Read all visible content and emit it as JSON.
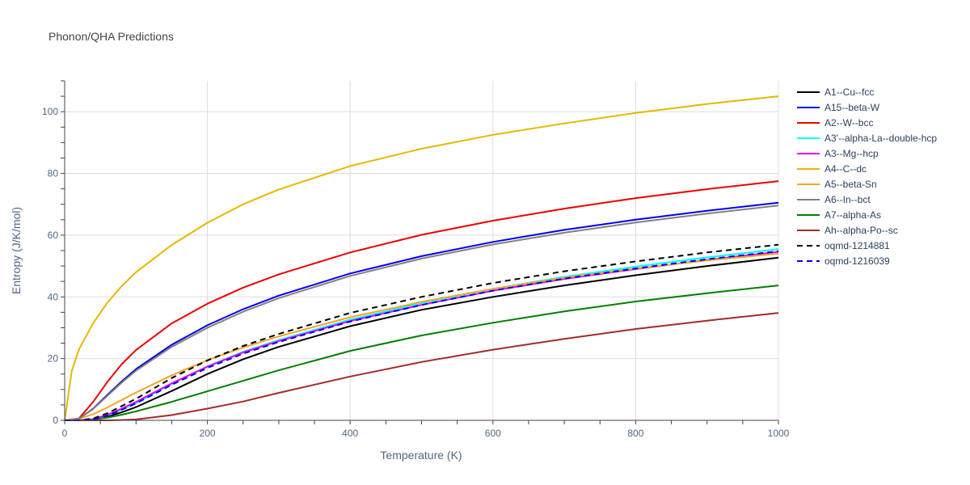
{
  "chart_data": {
    "type": "line",
    "title": "Phonon/QHA Predictions",
    "xlabel": "Temperature (K)",
    "ylabel": "Entropy (J/K/mol)",
    "xlim": [
      0,
      1000
    ],
    "ylim": [
      0,
      110
    ],
    "xticks": [
      0,
      200,
      400,
      600,
      800,
      1000
    ],
    "yticks": [
      0,
      20,
      40,
      60,
      80,
      100
    ],
    "grid": true,
    "legend_position": "right",
    "series": [
      {
        "name": "A1--Cu--fcc",
        "color": "#000000",
        "dash": "solid",
        "x": [
          0,
          20,
          40,
          60,
          80,
          100,
          150,
          200,
          250,
          300,
          400,
          500,
          600,
          700,
          800,
          900,
          1000
        ],
        "y": [
          0,
          0,
          0.3,
          1.2,
          2.6,
          4.3,
          9.5,
          15,
          19.8,
          23.8,
          30.5,
          35.8,
          40,
          43.7,
          47,
          50,
          52.7
        ]
      },
      {
        "name": "A15--beta-W",
        "color": "#0000ee",
        "dash": "solid",
        "x": [
          0,
          20,
          40,
          60,
          80,
          100,
          150,
          200,
          250,
          300,
          400,
          500,
          600,
          700,
          800,
          900,
          1000
        ],
        "y": [
          0,
          0.5,
          3.8,
          8.3,
          12.6,
          16.6,
          24.5,
          30.8,
          36,
          40.4,
          47.6,
          53.2,
          57.8,
          61.7,
          65,
          67.9,
          70.5
        ]
      },
      {
        "name": "A2--W--bcc",
        "color": "#ee0000",
        "dash": "solid",
        "x": [
          0,
          20,
          40,
          60,
          80,
          100,
          150,
          200,
          250,
          300,
          400,
          500,
          600,
          700,
          800,
          900,
          1000
        ],
        "y": [
          0,
          0.6,
          6,
          12.5,
          18.2,
          22.8,
          31.4,
          37.8,
          43,
          47.3,
          54.4,
          60.1,
          64.7,
          68.6,
          72,
          74.9,
          77.5
        ]
      },
      {
        "name": "A3'--alpha-La--double-hcp",
        "color": "#00ffff",
        "dash": "solid",
        "x": [
          0,
          20,
          40,
          60,
          80,
          100,
          150,
          200,
          250,
          300,
          400,
          500,
          600,
          700,
          800,
          900,
          1000
        ],
        "y": [
          0,
          0,
          0.3,
          1.6,
          3.5,
          5.6,
          11.8,
          17.5,
          22.2,
          26,
          32.6,
          38,
          42.6,
          46.5,
          49.8,
          52.8,
          55.5
        ]
      },
      {
        "name": "A3--Mg--hcp",
        "color": "#ee00ee",
        "dash": "solid",
        "x": [
          0,
          20,
          40,
          60,
          80,
          100,
          150,
          200,
          250,
          300,
          400,
          500,
          600,
          700,
          800,
          900,
          1000
        ],
        "y": [
          0,
          0,
          0.4,
          1.8,
          3.8,
          6,
          12,
          17.4,
          22,
          25.7,
          32.2,
          37.4,
          42,
          45.8,
          49,
          52,
          54.6
        ]
      },
      {
        "name": "A4--C--dc",
        "color": "#e6b800",
        "dash": "solid",
        "x": [
          0,
          5,
          10,
          20,
          40,
          60,
          80,
          100,
          150,
          200,
          250,
          300,
          400,
          500,
          600,
          700,
          800,
          900,
          1000
        ],
        "y": [
          0,
          8,
          16,
          23,
          31.5,
          38.2,
          43.5,
          48,
          56.8,
          64,
          70,
          74.8,
          82.4,
          88,
          92.5,
          96.2,
          99.6,
          102.5,
          105
        ]
      },
      {
        "name": "A5--beta-Sn",
        "color": "#f5a623",
        "dash": "solid",
        "x": [
          0,
          20,
          40,
          60,
          80,
          100,
          150,
          200,
          250,
          300,
          400,
          500,
          600,
          700,
          800,
          900,
          1000
        ],
        "y": [
          0,
          0.5,
          2,
          4.2,
          6.6,
          9,
          14.6,
          19.5,
          23.6,
          27.2,
          33.4,
          38.4,
          42.6,
          46.2,
          49.2,
          51.8,
          54
        ]
      },
      {
        "name": "A6--In--bct",
        "color": "#808080",
        "dash": "solid",
        "x": [
          0,
          20,
          40,
          60,
          80,
          100,
          150,
          200,
          250,
          300,
          400,
          500,
          600,
          700,
          800,
          900,
          1000
        ],
        "y": [
          0,
          0.5,
          3.7,
          8,
          12.2,
          16.1,
          23.8,
          30,
          35.2,
          39.6,
          46.8,
          52.4,
          57,
          60.8,
          64.1,
          67,
          69.6
        ]
      },
      {
        "name": "A7--alpha-As",
        "color": "#008000",
        "dash": "solid",
        "x": [
          0,
          20,
          40,
          60,
          80,
          100,
          150,
          200,
          250,
          300,
          400,
          500,
          600,
          700,
          800,
          900,
          1000
        ],
        "y": [
          0,
          0,
          0.3,
          0.9,
          1.8,
          2.9,
          6,
          9.4,
          12.8,
          16.2,
          22.5,
          27.5,
          31.6,
          35.3,
          38.5,
          41.2,
          43.7
        ]
      },
      {
        "name": "Ah--alpha-Po--sc",
        "color": "#a52a2a",
        "dash": "solid",
        "x": [
          0,
          20,
          40,
          60,
          80,
          100,
          150,
          200,
          250,
          300,
          400,
          500,
          600,
          700,
          800,
          900,
          1000
        ],
        "y": [
          0,
          0,
          0,
          0,
          0.1,
          0.3,
          1.7,
          3.8,
          6.1,
          8.9,
          14.2,
          18.9,
          22.9,
          26.4,
          29.6,
          32.3,
          34.8
        ]
      },
      {
        "name": "oqmd-1214881",
        "color": "#000000",
        "dash": "dash",
        "x": [
          0,
          20,
          40,
          60,
          80,
          100,
          150,
          200,
          250,
          300,
          400,
          500,
          600,
          700,
          800,
          900,
          1000
        ],
        "y": [
          0,
          0,
          0.6,
          2.3,
          4.6,
          7,
          13.7,
          19.4,
          24.1,
          28,
          34.8,
          40,
          44.5,
          48.3,
          51.5,
          54.4,
          56.9
        ]
      },
      {
        "name": "oqmd-1216039",
        "color": "#0000ee",
        "dash": "dash",
        "x": [
          0,
          20,
          40,
          60,
          80,
          100,
          150,
          200,
          250,
          300,
          400,
          500,
          600,
          700,
          800,
          900,
          1000
        ],
        "y": [
          0,
          0,
          0.3,
          1.5,
          3.4,
          5.5,
          11.5,
          17,
          21.6,
          25.4,
          32,
          37.4,
          42,
          45.9,
          49.2,
          52.2,
          54.8
        ]
      }
    ]
  }
}
